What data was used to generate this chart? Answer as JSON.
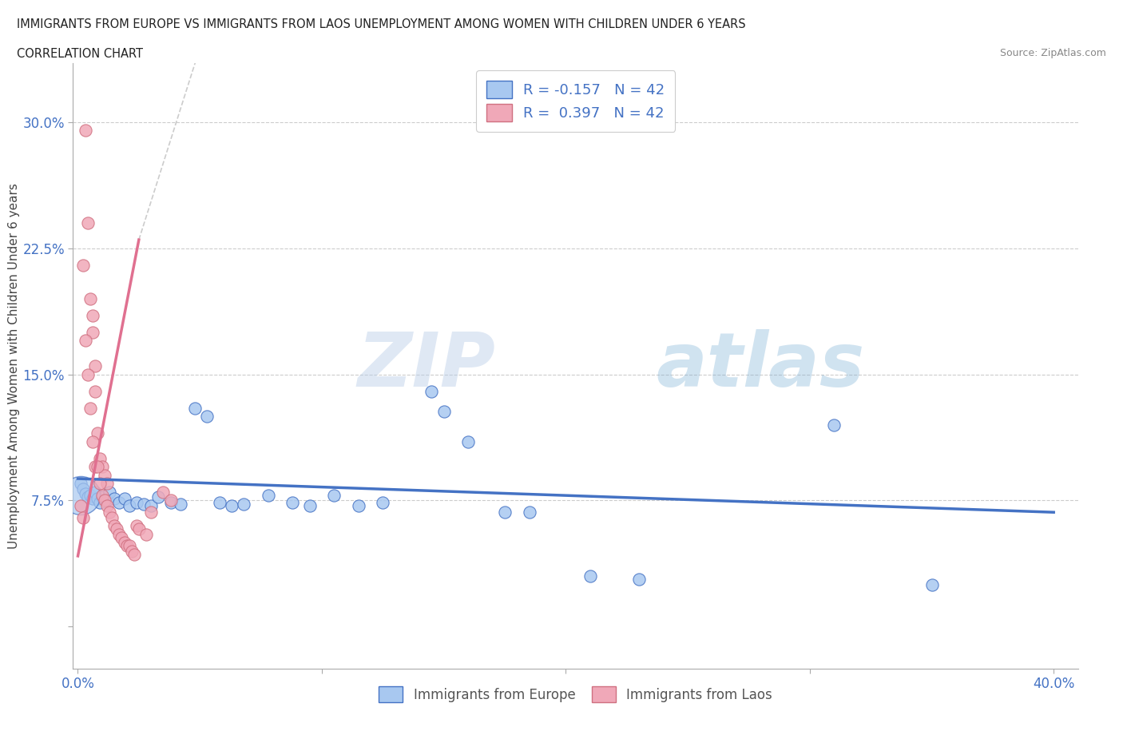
{
  "title_line1": "IMMIGRANTS FROM EUROPE VS IMMIGRANTS FROM LAOS UNEMPLOYMENT AMONG WOMEN WITH CHILDREN UNDER 6 YEARS",
  "title_line2": "CORRELATION CHART",
  "source": "Source: ZipAtlas.com",
  "ylabel": "Unemployment Among Women with Children Under 6 years",
  "xlim": [
    -0.002,
    0.41
  ],
  "ylim": [
    -0.025,
    0.335
  ],
  "xticks": [
    0.0,
    0.1,
    0.2,
    0.3,
    0.4
  ],
  "xticklabels": [
    "0.0%",
    "",
    "",
    "",
    "40.0%"
  ],
  "yticks": [
    0.0,
    0.075,
    0.15,
    0.225,
    0.3
  ],
  "yticklabels": [
    "",
    "7.5%",
    "15.0%",
    "22.5%",
    "30.0%"
  ],
  "grid_color": "#cccccc",
  "background_color": "#ffffff",
  "europe_color": "#a8c8f0",
  "laos_color": "#f0a8b8",
  "europe_line_color": "#4472c4",
  "laos_line_color": "#e07090",
  "laos_dashed_color": "#d0b0b8",
  "R_europe": -0.157,
  "N_europe": 42,
  "R_laos": 0.397,
  "N_laos": 42,
  "watermark_zip": "ZIP",
  "watermark_atlas": "atlas",
  "europe_scatter": [
    [
      0.001,
      0.085
    ],
    [
      0.002,
      0.082
    ],
    [
      0.003,
      0.079
    ],
    [
      0.004,
      0.077
    ],
    [
      0.005,
      0.078
    ],
    [
      0.006,
      0.076
    ],
    [
      0.007,
      0.08
    ],
    [
      0.008,
      0.076
    ],
    [
      0.009,
      0.074
    ],
    [
      0.01,
      0.077
    ],
    [
      0.012,
      0.075
    ],
    [
      0.013,
      0.08
    ],
    [
      0.015,
      0.076
    ],
    [
      0.017,
      0.074
    ],
    [
      0.019,
      0.076
    ],
    [
      0.021,
      0.072
    ],
    [
      0.024,
      0.074
    ],
    [
      0.027,
      0.073
    ],
    [
      0.03,
      0.072
    ],
    [
      0.033,
      0.077
    ],
    [
      0.038,
      0.074
    ],
    [
      0.042,
      0.073
    ],
    [
      0.048,
      0.13
    ],
    [
      0.053,
      0.125
    ],
    [
      0.058,
      0.074
    ],
    [
      0.063,
      0.072
    ],
    [
      0.068,
      0.073
    ],
    [
      0.078,
      0.078
    ],
    [
      0.088,
      0.074
    ],
    [
      0.095,
      0.072
    ],
    [
      0.105,
      0.078
    ],
    [
      0.115,
      0.072
    ],
    [
      0.125,
      0.074
    ],
    [
      0.145,
      0.14
    ],
    [
      0.15,
      0.128
    ],
    [
      0.16,
      0.11
    ],
    [
      0.175,
      0.068
    ],
    [
      0.185,
      0.068
    ],
    [
      0.21,
      0.03
    ],
    [
      0.23,
      0.028
    ],
    [
      0.31,
      0.12
    ],
    [
      0.35,
      0.025
    ]
  ],
  "europe_scatter_large": [
    [
      0.001,
      0.078
    ]
  ],
  "laos_scatter": [
    [
      0.003,
      0.295
    ],
    [
      0.004,
      0.24
    ],
    [
      0.005,
      0.195
    ],
    [
      0.006,
      0.185
    ],
    [
      0.006,
      0.175
    ],
    [
      0.007,
      0.155
    ],
    [
      0.007,
      0.14
    ],
    [
      0.008,
      0.115
    ],
    [
      0.009,
      0.1
    ],
    [
      0.01,
      0.095
    ],
    [
      0.011,
      0.09
    ],
    [
      0.012,
      0.085
    ],
    [
      0.002,
      0.215
    ],
    [
      0.003,
      0.17
    ],
    [
      0.004,
      0.15
    ],
    [
      0.005,
      0.13
    ],
    [
      0.006,
      0.11
    ],
    [
      0.007,
      0.095
    ],
    [
      0.008,
      0.095
    ],
    [
      0.009,
      0.085
    ],
    [
      0.01,
      0.078
    ],
    [
      0.011,
      0.075
    ],
    [
      0.012,
      0.072
    ],
    [
      0.013,
      0.068
    ],
    [
      0.014,
      0.065
    ],
    [
      0.015,
      0.06
    ],
    [
      0.016,
      0.058
    ],
    [
      0.017,
      0.055
    ],
    [
      0.018,
      0.053
    ],
    [
      0.019,
      0.05
    ],
    [
      0.02,
      0.048
    ],
    [
      0.021,
      0.048
    ],
    [
      0.022,
      0.045
    ],
    [
      0.023,
      0.043
    ],
    [
      0.024,
      0.06
    ],
    [
      0.025,
      0.058
    ],
    [
      0.028,
      0.055
    ],
    [
      0.03,
      0.068
    ],
    [
      0.035,
      0.08
    ],
    [
      0.038,
      0.075
    ],
    [
      0.001,
      0.072
    ],
    [
      0.002,
      0.065
    ]
  ],
  "europe_trendline": [
    [
      0.0,
      0.088
    ],
    [
      0.4,
      0.068
    ]
  ],
  "laos_trendline_solid": [
    [
      0.0,
      0.042
    ],
    [
      0.025,
      0.23
    ]
  ],
  "laos_trendline_dashed": [
    [
      0.025,
      0.23
    ],
    [
      0.15,
      0.8
    ]
  ]
}
